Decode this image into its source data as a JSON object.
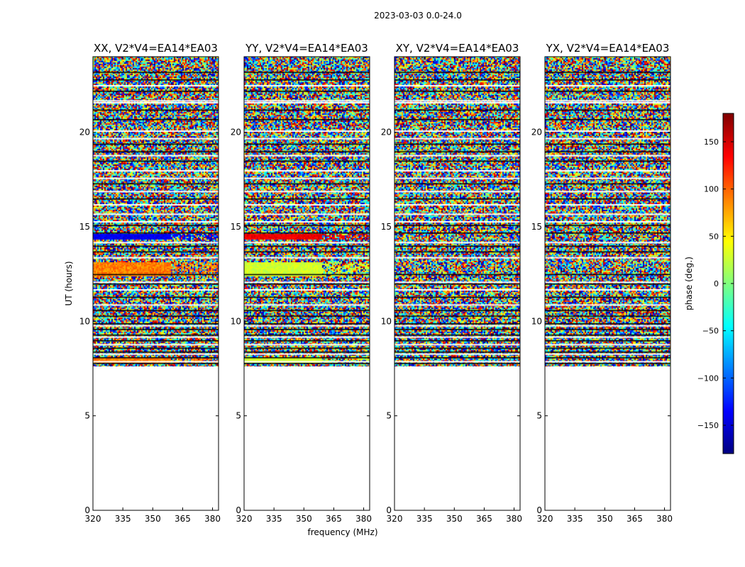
{
  "chart_data": {
    "type": "heatmap",
    "title": "2023-03-03 0.0-24.0",
    "xlabel": "frequency (MHz)",
    "ylabel": "UT (hours)",
    "xlim": [
      320,
      383
    ],
    "ylim": [
      0,
      24
    ],
    "x_ticks": [
      320,
      335,
      350,
      365,
      380
    ],
    "y_ticks": [
      0,
      5,
      10,
      15,
      20
    ],
    "data_start_hour": 7.6,
    "panels": [
      {
        "title": "XX, V2*V4=EA14*EA03",
        "band_14_5": "blue",
        "band_12_8": "orange",
        "band_8": "orange"
      },
      {
        "title": "YY, V2*V4=EA14*EA03",
        "band_14_5": "red",
        "band_12_8": "lightgreen",
        "band_8": "lightgreen"
      },
      {
        "title": "XY, V2*V4=EA14*EA03",
        "band_14_5": "none",
        "band_12_8": "none",
        "band_8": "none"
      },
      {
        "title": "YX, V2*V4=EA14*EA03",
        "band_14_5": "none",
        "band_12_8": "none",
        "band_8": "none"
      }
    ],
    "colorbar": {
      "label": "phase (deg.)",
      "range": [
        -180,
        180
      ],
      "ticks": [
        150,
        100,
        50,
        0,
        -50,
        -100,
        -150
      ],
      "tick_labels": [
        "150",
        "100",
        "50",
        "0",
        "−50",
        "−100",
        "−150"
      ],
      "colormap": "jet"
    },
    "white_gap_hours": [
      22.5,
      21.7,
      21.6,
      20.1,
      19.7,
      18.8,
      18.0,
      17.6,
      16.9,
      16.2,
      15.7,
      15.3,
      14.2,
      13.4,
      12.1,
      11.7,
      10.9,
      9.8,
      9.2,
      8.8,
      8.3,
      7.9
    ],
    "black_line_hours": [
      23.2,
      22.8,
      22.2,
      21.2,
      20.7,
      19.4,
      19.0,
      18.5,
      17.3,
      16.5,
      15.1,
      14.7,
      14.0,
      13.7,
      12.5,
      12.0,
      11.3,
      10.6,
      10.3,
      9.9,
      9.6,
      9.3,
      9.0,
      8.6,
      8.4,
      8.1,
      7.8
    ]
  }
}
